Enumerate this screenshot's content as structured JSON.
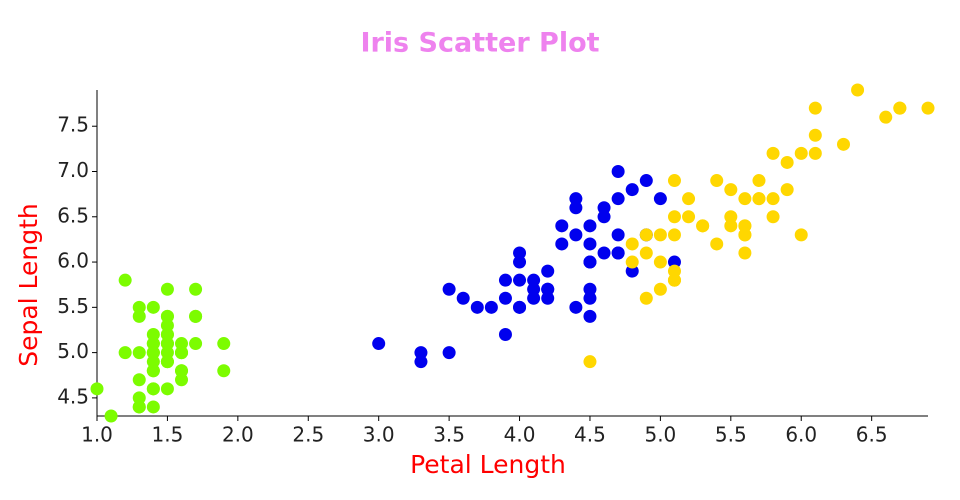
{
  "chart_data": {
    "type": "scatter",
    "title": "Iris Scatter Plot",
    "x_label": "Petal Length",
    "y_label": "Sepal Length",
    "xlim": [
      1.0,
      6.9
    ],
    "ylim": [
      4.3,
      7.9
    ],
    "xticks": [
      {
        "value": 1,
        "label": "1.0"
      },
      1.5,
      {
        "value": 2,
        "label": "2.0"
      },
      2.5,
      {
        "value": 3,
        "label": "3.0"
      },
      3.5,
      {
        "value": 4,
        "label": "4.0"
      },
      4.5,
      {
        "value": 5,
        "label": "5.0"
      },
      5.5,
      {
        "value": 6,
        "label": "6.0"
      },
      6.5
    ],
    "yticks": [
      4.5,
      {
        "value": 5,
        "label": "5.0"
      },
      5.5,
      {
        "value": 6,
        "label": "6.0"
      },
      6.5,
      {
        "value": 7,
        "label": "7.0"
      },
      7.5
    ],
    "grid": false,
    "series": [
      {
        "color": "#7cfc00",
        "x": [
          1.4,
          1.4,
          1.3,
          1.5,
          1.4,
          1.7,
          1.4,
          1.5,
          1.4,
          1.5,
          1.5,
          1.6,
          1.4,
          1.1,
          1.2,
          1.5,
          1.3,
          1.4,
          1.7,
          1.5,
          1.7,
          1.5,
          1.0,
          1.7,
          1.9,
          1.6,
          1.6,
          1.5,
          1.4,
          1.6,
          1.6,
          1.5,
          1.5,
          1.4,
          1.5,
          1.2,
          1.3,
          1.5,
          1.3,
          1.5,
          1.3,
          1.3,
          1.3,
          1.6,
          1.9,
          1.4,
          1.6,
          1.4,
          1.5,
          1.4
        ],
        "values": [
          5.1,
          4.9,
          4.7,
          4.6,
          5.0,
          5.4,
          4.6,
          5.0,
          4.4,
          4.9,
          5.4,
          4.8,
          4.8,
          4.3,
          5.8,
          5.7,
          5.4,
          5.1,
          5.7,
          5.1,
          5.4,
          5.1,
          4.6,
          5.1,
          4.8,
          5.0,
          5.0,
          5.2,
          5.2,
          4.7,
          4.8,
          5.4,
          5.2,
          5.5,
          4.9,
          5.0,
          5.5,
          4.9,
          4.4,
          5.1,
          5.0,
          4.5,
          4.4,
          5.0,
          5.1,
          4.8,
          5.1,
          4.6,
          5.3,
          5.0
        ]
      },
      {
        "color": "#0000ee",
        "x": [
          4.7,
          4.5,
          4.9,
          4.0,
          4.6,
          4.5,
          4.7,
          3.3,
          4.6,
          3.9,
          3.5,
          4.2,
          4.0,
          4.7,
          3.6,
          4.4,
          4.5,
          4.1,
          4.5,
          3.9,
          4.8,
          4.0,
          4.9,
          4.7,
          4.3,
          4.4,
          4.8,
          5.0,
          4.5,
          3.5,
          3.8,
          3.7,
          3.9,
          5.1,
          4.5,
          4.5,
          4.7,
          4.4,
          4.1,
          4.0,
          4.4,
          4.6,
          4.0,
          3.3,
          4.2,
          4.2,
          4.2,
          4.3,
          3.0,
          4.1
        ],
        "values": [
          7.0,
          6.4,
          6.9,
          5.5,
          6.5,
          5.7,
          6.3,
          4.9,
          6.6,
          5.2,
          5.0,
          5.9,
          6.0,
          6.1,
          5.6,
          6.7,
          5.6,
          5.8,
          6.2,
          5.6,
          5.9,
          6.1,
          6.3,
          6.1,
          6.4,
          6.6,
          6.8,
          6.7,
          6.0,
          5.7,
          5.5,
          5.5,
          5.8,
          6.0,
          5.4,
          6.0,
          6.7,
          6.3,
          5.6,
          5.5,
          5.5,
          6.1,
          5.8,
          5.0,
          5.6,
          5.7,
          5.7,
          6.2,
          5.1,
          5.7
        ]
      },
      {
        "color": "#ffd700",
        "x": [
          6.0,
          5.1,
          5.9,
          5.6,
          5.8,
          6.6,
          4.5,
          6.3,
          5.8,
          6.1,
          5.1,
          5.3,
          5.5,
          5.0,
          5.1,
          5.3,
          5.5,
          6.7,
          6.9,
          5.0,
          5.7,
          4.9,
          6.7,
          4.9,
          5.7,
          6.0,
          4.8,
          4.9,
          5.6,
          5.8,
          6.1,
          6.4,
          5.6,
          5.1,
          5.6,
          6.1,
          5.6,
          5.5,
          4.8,
          5.4,
          5.6,
          5.1,
          5.1,
          5.9,
          5.7,
          5.2,
          5.0,
          5.2,
          5.4,
          5.1
        ],
        "values": [
          6.3,
          5.8,
          7.1,
          6.3,
          6.5,
          7.6,
          4.9,
          7.3,
          6.7,
          7.2,
          6.5,
          6.4,
          6.8,
          5.7,
          5.8,
          6.4,
          6.5,
          7.7,
          7.7,
          6.0,
          6.9,
          5.6,
          7.7,
          6.3,
          6.7,
          7.2,
          6.2,
          6.1,
          6.4,
          7.2,
          7.4,
          7.9,
          6.4,
          6.3,
          6.1,
          7.7,
          6.3,
          6.4,
          6.0,
          6.9,
          6.7,
          6.9,
          5.8,
          6.8,
          6.7,
          6.7,
          6.3,
          6.5,
          6.2,
          5.9
        ]
      }
    ]
  }
}
